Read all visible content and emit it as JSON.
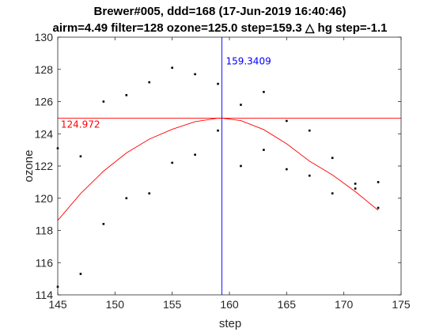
{
  "chart_data": {
    "type": "scatter",
    "title": "Brewer#005, ddd=168 (17-Jun-2019 16:40:46)",
    "subtitle": "airm=4.49  filter=128 ozone=125.0  step=159.3 △ hg step=-1.1",
    "xlabel": "step",
    "ylabel": "ozone",
    "xlim": [
      145,
      175
    ],
    "ylim": [
      114,
      130
    ],
    "xticks": [
      "145",
      "150",
      "155",
      "160",
      "165",
      "170",
      "175"
    ],
    "yticks": [
      "114",
      "116",
      "118",
      "120",
      "122",
      "124",
      "126",
      "128",
      "130"
    ],
    "grid": false,
    "points": {
      "x": [
        145,
        145,
        147,
        147,
        149,
        149,
        151,
        151,
        153,
        153,
        155,
        155,
        157,
        157,
        159,
        159,
        161,
        161,
        163,
        163,
        165,
        165,
        167,
        167,
        169,
        169,
        171,
        171,
        173,
        173
      ],
      "y": [
        123.1,
        114.5,
        122.6,
        115.3,
        126.0,
        118.4,
        126.4,
        120.0,
        127.2,
        120.3,
        128.1,
        122.2,
        127.7,
        122.7,
        127.1,
        124.2,
        125.8,
        122.0,
        126.6,
        123.0,
        124.8,
        121.8,
        124.2,
        121.4,
        122.5,
        120.3,
        120.9,
        120.6,
        121.0,
        119.4
      ],
      "color": "#000000"
    },
    "fit_curve": {
      "color": "#ff0000",
      "x": [
        145,
        147,
        149,
        151,
        153,
        155,
        157,
        159,
        159.3409,
        161,
        163,
        165,
        167,
        169,
        171,
        173
      ],
      "y": [
        118.62,
        120.29,
        121.68,
        122.81,
        123.67,
        124.28,
        124.75,
        124.97,
        124.972,
        124.82,
        124.26,
        123.38,
        122.3,
        121.45,
        120.41,
        119.25
      ]
    },
    "hline": {
      "y": 124.972,
      "label": "124.972",
      "color": "#ff0000"
    },
    "vline": {
      "x": 159.3409,
      "label": "159.3409",
      "color": "#0000ff"
    }
  }
}
